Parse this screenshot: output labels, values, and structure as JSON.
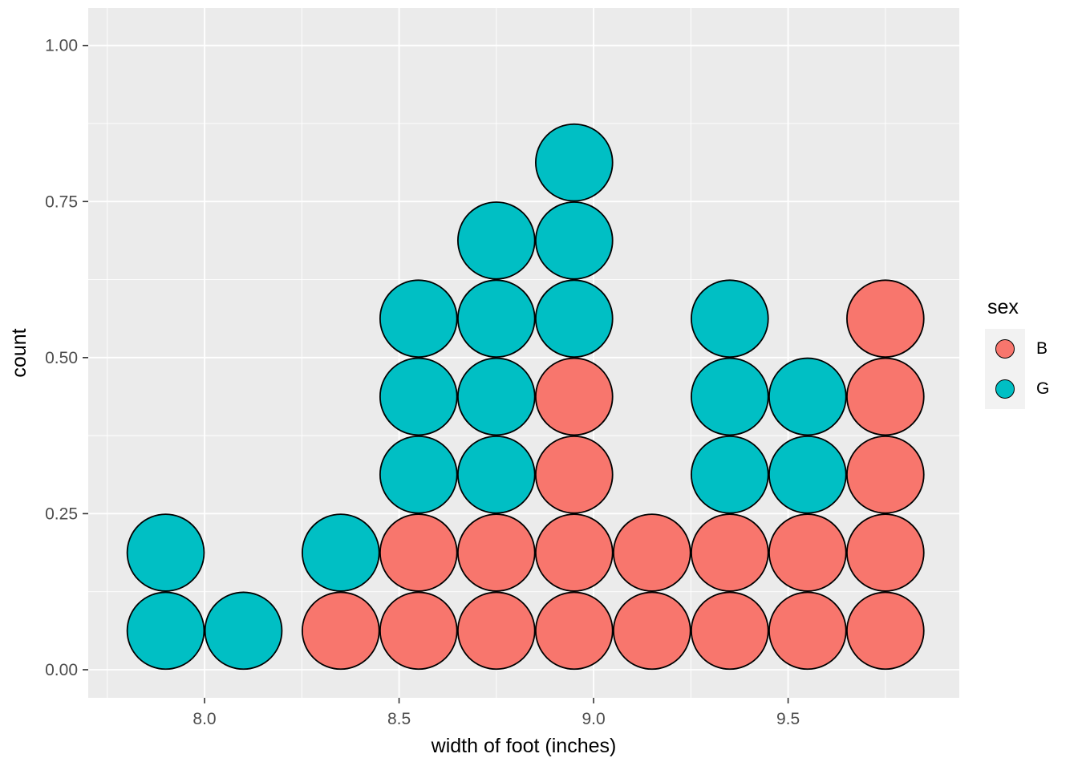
{
  "chart_data": {
    "type": "dotplot",
    "title": "",
    "xlabel": "width of foot (inches)",
    "ylabel": "count",
    "x_ticks": [
      8.0,
      8.5,
      9.0,
      9.5
    ],
    "x_tick_labels": [
      "8.0",
      "8.5",
      "9.0",
      "9.5"
    ],
    "y_ticks": [
      0,
      0.25,
      0.5,
      0.75,
      1
    ],
    "y_tick_labels": [
      "0.00",
      "0.25",
      "0.50",
      "0.75",
      "1.00"
    ],
    "x_minor": [
      7.75,
      8.25,
      8.75,
      9.25,
      9.75
    ],
    "y_minor": [
      0.125,
      0.375,
      0.625,
      0.875
    ],
    "x_range": [
      7.701,
      9.94
    ],
    "y_range": [
      -0.045,
      1.06
    ],
    "binwidth_x": 0.2,
    "dot_diameter_y": 0.125,
    "panel_bg": "#EBEBEB",
    "grid_color": "#FFFFFF",
    "tick_color": "#333333",
    "tick_label_color": "#4D4D4D",
    "axis_title_color": "#000000",
    "dot_stroke": "#000000",
    "legend": {
      "title": "sex",
      "position": "right",
      "key_bg": "#F2F2F2",
      "entries": [
        {
          "label": "B",
          "color": "#F8766D"
        },
        {
          "label": "G",
          "color": "#00BFC4"
        }
      ]
    },
    "columns": [
      {
        "x": 7.9,
        "stack": [
          "G",
          "G"
        ]
      },
      {
        "x": 8.1,
        "stack": [
          "G"
        ]
      },
      {
        "x": 8.35,
        "stack": [
          "B",
          "G"
        ]
      },
      {
        "x": 8.55,
        "stack": [
          "B",
          "B",
          "G",
          "G",
          "G"
        ]
      },
      {
        "x": 8.75,
        "stack": [
          "B",
          "B",
          "G",
          "G",
          "G",
          "G"
        ]
      },
      {
        "x": 8.95,
        "stack": [
          "B",
          "B",
          "B",
          "B",
          "G",
          "G",
          "G"
        ]
      },
      {
        "x": 9.15,
        "stack": [
          "B",
          "B"
        ]
      },
      {
        "x": 9.35,
        "stack": [
          "B",
          "B",
          "G",
          "G",
          "G"
        ]
      },
      {
        "x": 9.55,
        "stack": [
          "B",
          "B",
          "G",
          "G"
        ]
      },
      {
        "x": 9.75,
        "stack": [
          "B",
          "B",
          "B",
          "B",
          "B"
        ]
      }
    ]
  }
}
